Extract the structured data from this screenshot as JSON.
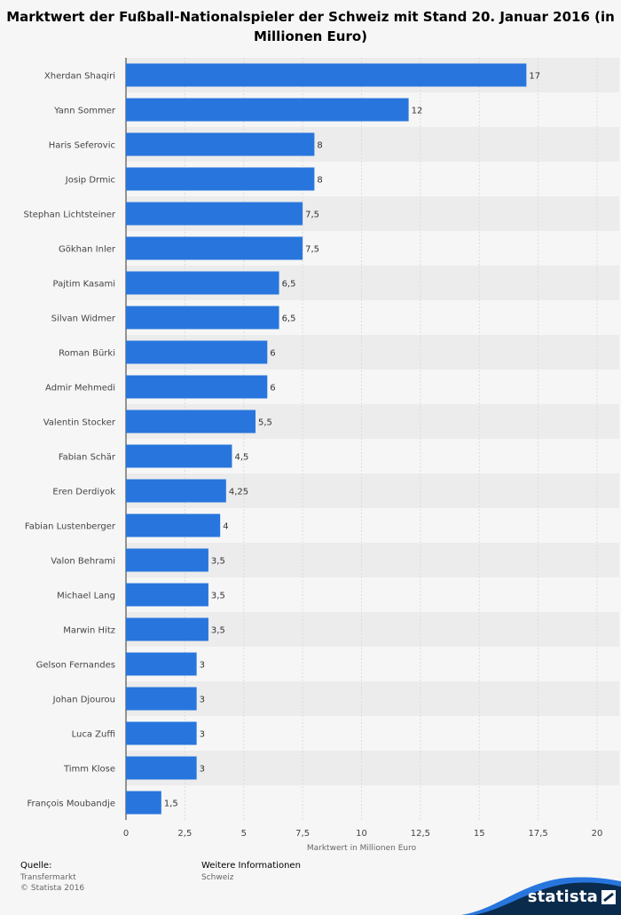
{
  "title": "Marktwert der Fußball-Nationalspieler der Schweiz mit Stand 20. Januar 2016 (in Millionen Euro)",
  "colors": {
    "bar": "#2876dd",
    "background": "#f6f6f6",
    "stripe": "#ececec",
    "grid": "#dcdcdc",
    "axis": "#333333",
    "label": "#444444",
    "brand_dark": "#0b2b4c",
    "brand_accent": "#2876dd"
  },
  "chart_data": {
    "type": "bar",
    "orientation": "horizontal",
    "title": "Marktwert der Fußball-Nationalspieler der Schweiz mit Stand 20. Januar 2016 (in Millionen Euro)",
    "xlabel": "Marktwert in Millionen Euro",
    "ylabel": "",
    "xlim": [
      0,
      20
    ],
    "x_ticks": [
      "0",
      "2,5",
      "5",
      "7,5",
      "10",
      "12,5",
      "15",
      "17,5",
      "20"
    ],
    "x_tick_values": [
      0,
      2.5,
      5,
      7.5,
      10,
      12.5,
      15,
      17.5,
      20
    ],
    "grid": true,
    "categories": [
      "Xherdan Shaqiri",
      "Yann Sommer",
      "Haris Seferovic",
      "Josip Drmic",
      "Stephan Lichtsteiner",
      "Gökhan Inler",
      "Pajtim Kasami",
      "Silvan Widmer",
      "Roman Bürki",
      "Admir Mehmedi",
      "Valentin Stocker",
      "Fabian Schär",
      "Eren Derdiyok",
      "Fabian Lustenberger",
      "Valon Behrami",
      "Michael Lang",
      "Marwin Hitz",
      "Gelson Fernandes",
      "Johan Djourou",
      "Luca Zuffi",
      "Timm Klose",
      "François Moubandje"
    ],
    "values": [
      17,
      12,
      8,
      8,
      7.5,
      7.5,
      6.5,
      6.5,
      6,
      6,
      5.5,
      4.5,
      4.25,
      4,
      3.5,
      3.5,
      3.5,
      3,
      3,
      3,
      3,
      1.5
    ],
    "value_labels": [
      "17",
      "12",
      "8",
      "8",
      "7,5",
      "7,5",
      "6,5",
      "6,5",
      "6",
      "6",
      "5,5",
      "4,5",
      "4,25",
      "4",
      "3,5",
      "3,5",
      "3,5",
      "3",
      "3",
      "3",
      "3",
      "1,5"
    ]
  },
  "footer": {
    "source_label": "Quelle:",
    "source_lines": [
      "Transfermarkt",
      "© Statista 2016"
    ],
    "info_label": "Weitere Informationen",
    "info_lines": [
      "Schweiz"
    ]
  },
  "brand": {
    "name": "statista"
  }
}
